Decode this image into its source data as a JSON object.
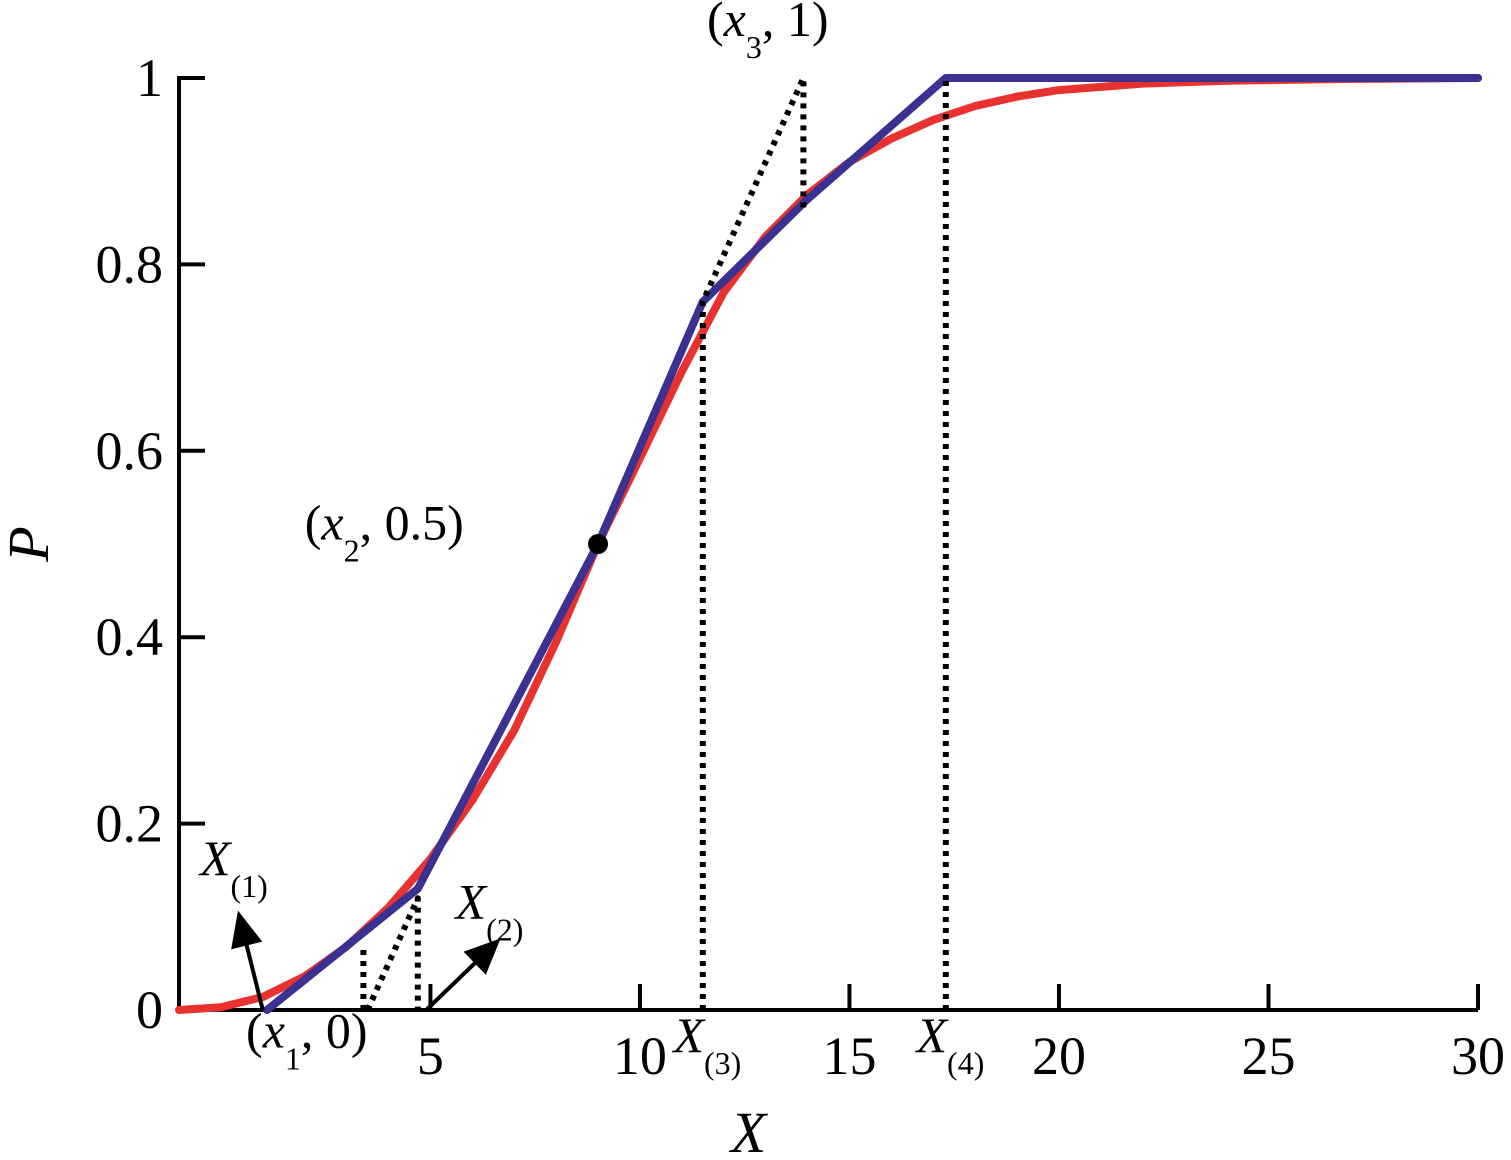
{
  "chart_data": {
    "type": "line",
    "title": "",
    "xlabel": "X",
    "ylabel": "P",
    "xlim": [
      -1,
      30
    ],
    "ylim": [
      0,
      1
    ],
    "x_ticks": [
      {
        "value": 5,
        "label": "5"
      },
      {
        "value": 10,
        "label": "10"
      },
      {
        "value": 15,
        "label": "15"
      },
      {
        "value": 20,
        "label": "20"
      },
      {
        "value": 25,
        "label": "25"
      },
      {
        "value": 30,
        "label": "30"
      }
    ],
    "y_ticks": [
      {
        "value": 0,
        "label": "0"
      },
      {
        "value": 0.2,
        "label": "0.2"
      },
      {
        "value": 0.4,
        "label": "0.4"
      },
      {
        "value": 0.6,
        "label": "0.6"
      },
      {
        "value": 0.8,
        "label": "0.8"
      },
      {
        "value": 1,
        "label": "1"
      }
    ],
    "grid": false,
    "series": [
      {
        "color": "#e8322f",
        "style": "solid",
        "points": [
          [
            -1,
            0
          ],
          [
            0,
            0.003
          ],
          [
            1,
            0.014
          ],
          [
            2,
            0.036
          ],
          [
            3,
            0.068
          ],
          [
            4,
            0.11
          ],
          [
            5,
            0.162
          ],
          [
            6,
            0.225
          ],
          [
            7,
            0.3
          ],
          [
            8,
            0.395
          ],
          [
            9,
            0.5
          ],
          [
            10,
            0.592
          ],
          [
            11,
            0.685
          ],
          [
            12,
            0.77
          ],
          [
            13,
            0.83
          ],
          [
            14,
            0.875
          ],
          [
            15,
            0.91
          ],
          [
            16,
            0.935
          ],
          [
            17,
            0.955
          ],
          [
            18,
            0.97
          ],
          [
            19,
            0.98
          ],
          [
            20,
            0.987
          ],
          [
            22,
            0.994
          ],
          [
            24,
            0.997
          ],
          [
            27,
            0.999
          ],
          [
            30,
            1.0
          ]
        ]
      },
      {
        "color": "#3a3191",
        "style": "solid",
        "points": [
          [
            1.1,
            0
          ],
          [
            4.7,
            0.13
          ],
          [
            9,
            0.5
          ],
          [
            11.5,
            0.76
          ],
          [
            14,
            0.87
          ],
          [
            17.3,
            1.0
          ],
          [
            30,
            1.0
          ]
        ]
      },
      {
        "color": "#000000",
        "style": "dotted",
        "points": [
          [
            3.5,
            0
          ],
          [
            4.7,
            0.12
          ],
          [
            4.7,
            0
          ]
        ]
      },
      {
        "color": "#000000",
        "style": "dotted",
        "points": [
          [
            3.4,
            0
          ],
          [
            3.4,
            0.065
          ]
        ]
      },
      {
        "color": "#000000",
        "style": "dotted",
        "points": [
          [
            11.5,
            0
          ],
          [
            11.5,
            0.76
          ],
          [
            13.9,
            1.0
          ],
          [
            13.9,
            0.86
          ]
        ]
      },
      {
        "color": "#000000",
        "style": "dotted",
        "points": [
          [
            17.3,
            0
          ],
          [
            17.3,
            1.0
          ]
        ]
      }
    ],
    "markers": [
      {
        "x": 9,
        "y": 0.5,
        "color": "#000000"
      }
    ],
    "annotations": [
      {
        "id": "x3-1",
        "base": "x",
        "sub": "3",
        "tail": ", 1)",
        "x": 11.6,
        "y": 1.045
      },
      {
        "id": "x2-05",
        "base": "x",
        "sub": "2",
        "tail": ", 0.5)",
        "x": 2.0,
        "y": 0.505
      },
      {
        "id": "x1-0",
        "base": "x",
        "sub": "1",
        "tail": ", 0)",
        "x": 0.6,
        "y": -0.04
      },
      {
        "id": "X1",
        "base": "X",
        "sub": "(1)",
        "tail": "",
        "x": -0.5,
        "y": 0.145
      },
      {
        "id": "X2",
        "base": "X",
        "sub": "(2)",
        "tail": "",
        "x": 5.6,
        "y": 0.098
      },
      {
        "id": "X3",
        "base": "X",
        "sub": "(3)",
        "tail": "",
        "x": 10.8,
        "y": -0.045
      },
      {
        "id": "X4",
        "base": "X",
        "sub": "(4)",
        "tail": "",
        "x": 16.6,
        "y": -0.045
      }
    ],
    "arrows": [
      {
        "from": [
          1.0,
          0
        ],
        "to": [
          0.5,
          0.09
        ]
      },
      {
        "from": [
          4.9,
          0
        ],
        "to": [
          6.4,
          0.065
        ]
      }
    ]
  }
}
